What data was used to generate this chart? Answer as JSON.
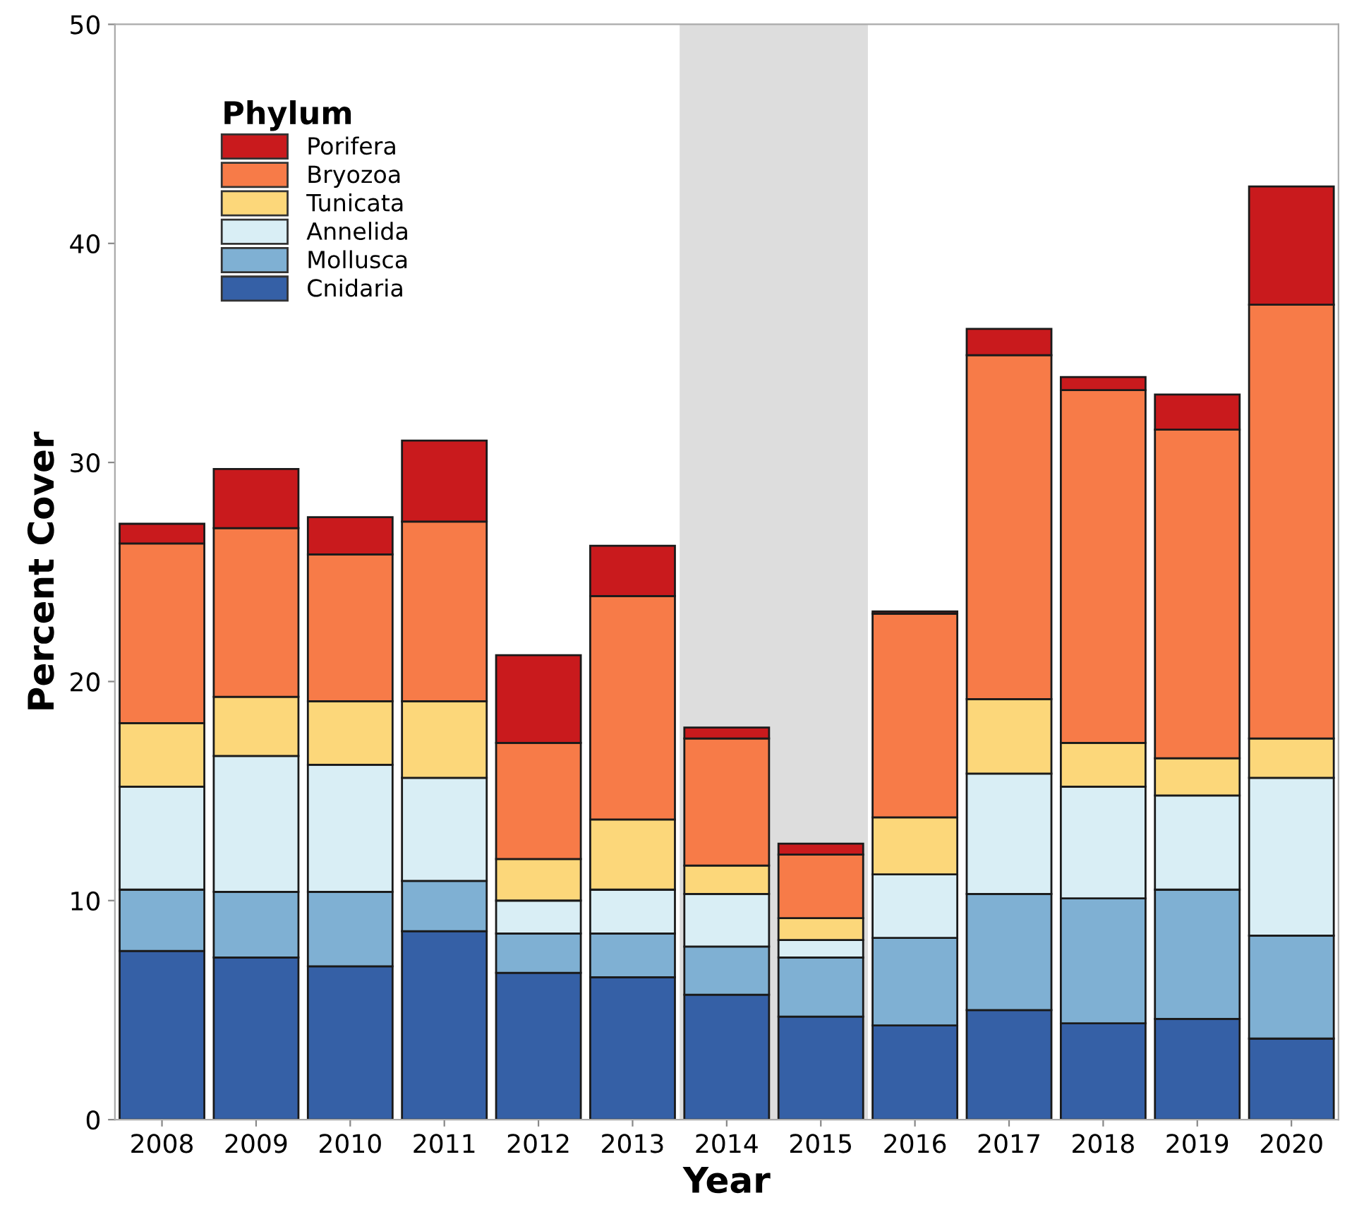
{
  "chart_data": {
    "type": "bar",
    "stacked": true,
    "xlabel": "Year",
    "ylabel": "Percent Cover",
    "legend_title": "Phylum",
    "legend": "top left",
    "grid": false,
    "categories": [
      "2008",
      "2009",
      "2010",
      "2011",
      "2012",
      "2013",
      "2014",
      "2015",
      "2016",
      "2017",
      "2018",
      "2019",
      "2020"
    ],
    "ylim": [
      0,
      50
    ],
    "yticks": [
      0,
      10,
      20,
      30,
      40,
      50
    ],
    "bands": [
      {
        "axis": "x",
        "from": "2014",
        "to": "2015",
        "color": "#dddddd"
      }
    ],
    "series": [
      {
        "name": "Cnidaria",
        "color": "#3560a6",
        "values": [
          7.7,
          7.4,
          7.0,
          8.6,
          6.7,
          6.5,
          5.7,
          4.7,
          4.3,
          5.0,
          4.4,
          4.6,
          3.7
        ]
      },
      {
        "name": "Mollusca",
        "color": "#7fb0d3",
        "values": [
          2.8,
          3.0,
          3.4,
          2.3,
          1.8,
          2.0,
          2.2,
          2.7,
          4.0,
          5.3,
          5.7,
          5.9,
          4.7
        ]
      },
      {
        "name": "Annelida",
        "color": "#d9eef5",
        "values": [
          4.7,
          6.2,
          5.8,
          4.7,
          1.5,
          2.0,
          2.4,
          0.8,
          2.9,
          5.5,
          5.1,
          4.3,
          7.2
        ]
      },
      {
        "name": "Tunicata",
        "color": "#fcd77a",
        "values": [
          2.9,
          2.7,
          2.9,
          3.5,
          1.9,
          3.2,
          1.3,
          1.0,
          2.6,
          3.4,
          2.0,
          1.7,
          1.8
        ]
      },
      {
        "name": "Bryozoa",
        "color": "#f77b48",
        "values": [
          8.2,
          7.7,
          6.7,
          8.2,
          5.3,
          10.2,
          5.8,
          2.9,
          9.3,
          15.7,
          16.1,
          15.0,
          19.8
        ]
      },
      {
        "name": "Porifera",
        "color": "#c91a1d",
        "values": [
          0.9,
          2.7,
          1.7,
          3.7,
          4.0,
          2.3,
          0.5,
          0.5,
          0.1,
          1.2,
          0.6,
          1.6,
          5.4
        ]
      }
    ]
  }
}
